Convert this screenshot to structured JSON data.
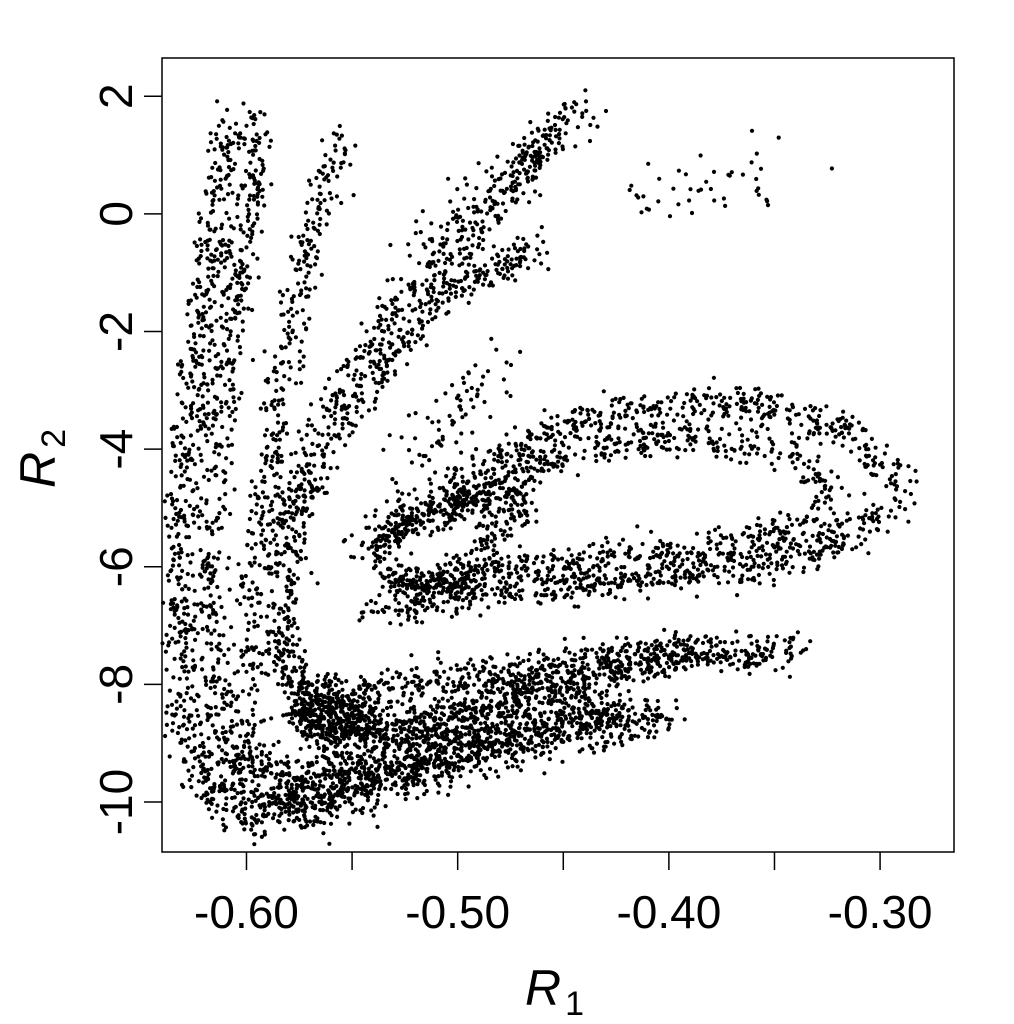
{
  "chart_data": {
    "type": "scatter",
    "title": "",
    "xlabel": {
      "symbol": "R",
      "subscript": "1"
    },
    "ylabel": {
      "symbol": "R",
      "subscript": "2"
    },
    "xlim": [
      -0.64,
      -0.265
    ],
    "ylim": [
      -10.85,
      2.65
    ],
    "x_ticks": [
      -0.6,
      -0.55,
      -0.5,
      -0.45,
      -0.4,
      -0.35,
      -0.3
    ],
    "x_tick_labels": [
      "-0.60",
      "",
      "-0.50",
      "",
      "-0.40",
      "",
      "-0.30"
    ],
    "y_ticks": [
      2,
      0,
      -2,
      -4,
      -6,
      -8,
      -10
    ],
    "y_tick_labels": [
      "2",
      "0",
      "-2",
      "-4",
      "-6",
      "-8",
      "-10"
    ],
    "grid": false,
    "legend": "none",
    "point_color": "#000000",
    "series": [
      {
        "bands": [
          {
            "path": [
              [
                -0.606,
                1.5
              ],
              [
                -0.622,
                -2.0
              ],
              [
                -0.631,
                -5.0
              ],
              [
                -0.631,
                -8.0
              ],
              [
                -0.622,
                -9.6
              ],
              [
                -0.6,
                -10.2
              ],
              [
                -0.57,
                -10.1
              ],
              [
                -0.52,
                -9.4
              ],
              [
                -0.46,
                -8.9
              ],
              [
                -0.4,
                -8.6
              ]
            ],
            "spread": [
              0.005,
              0.22
            ],
            "points": 1300
          },
          {
            "path": [
              [
                -0.593,
                1.7
              ],
              [
                -0.607,
                -2.0
              ],
              [
                -0.616,
                -5.0
              ],
              [
                -0.617,
                -7.5
              ],
              [
                -0.61,
                -9.2
              ],
              [
                -0.59,
                -9.9
              ],
              [
                -0.55,
                -9.7
              ],
              [
                -0.5,
                -9.1
              ],
              [
                -0.45,
                -8.6
              ],
              [
                -0.42,
                -8.3
              ]
            ],
            "spread": [
              0.004,
              0.18
            ],
            "points": 950
          },
          {
            "path": [
              [
                -0.555,
                1.5
              ],
              [
                -0.575,
                -1.2
              ],
              [
                -0.588,
                -4.0
              ],
              [
                -0.598,
                -6.5
              ],
              [
                -0.6,
                -8.0
              ],
              [
                -0.595,
                -9.3
              ],
              [
                -0.575,
                -9.6
              ],
              [
                -0.53,
                -9.0
              ],
              [
                -0.48,
                -8.4
              ],
              [
                -0.44,
                -8.0
              ]
            ],
            "spread": [
              0.004,
              0.18
            ],
            "points": 800
          },
          {
            "path": [
              [
                -0.45,
                1.6
              ],
              [
                -0.49,
                -0.2
              ],
              [
                -0.53,
                -1.6
              ],
              [
                -0.565,
                -3.5
              ],
              [
                -0.585,
                -5.5
              ],
              [
                -0.585,
                -7.5
              ],
              [
                -0.57,
                -8.5
              ],
              [
                -0.54,
                -8.8
              ],
              [
                -0.5,
                -8.4
              ],
              [
                -0.46,
                -8.0
              ],
              [
                -0.4,
                -7.6
              ],
              [
                -0.34,
                -7.4
              ]
            ],
            "spread": [
              0.004,
              0.16
            ],
            "points": 1100
          },
          {
            "path": [
              [
                -0.46,
                -0.6
              ],
              [
                -0.5,
                -1.2
              ],
              [
                -0.545,
                -3.0
              ],
              [
                -0.575,
                -5.0
              ],
              [
                -0.58,
                -6.8
              ],
              [
                -0.578,
                -7.9
              ],
              [
                -0.555,
                -8.3
              ],
              [
                -0.52,
                -8.0
              ],
              [
                -0.48,
                -7.8
              ],
              [
                -0.42,
                -7.5
              ],
              [
                -0.38,
                -7.3
              ]
            ],
            "spread": [
              0.004,
              0.16
            ],
            "points": 800
          },
          {
            "path": [
              [
                -0.54,
                -6.8
              ],
              [
                -0.5,
                -6.5
              ],
              [
                -0.46,
                -6.3
              ],
              [
                -0.41,
                -6.2
              ],
              [
                -0.36,
                -6.0
              ],
              [
                -0.32,
                -5.6
              ],
              [
                -0.293,
                -5.0
              ],
              [
                -0.29,
                -4.5
              ],
              [
                -0.31,
                -3.8
              ],
              [
                -0.35,
                -3.3
              ],
              [
                -0.4,
                -3.3
              ],
              [
                -0.45,
                -3.6
              ],
              [
                -0.49,
                -4.3
              ],
              [
                -0.52,
                -5.0
              ],
              [
                -0.545,
                -5.7
              ]
            ],
            "spread": [
              0.005,
              0.16
            ],
            "points": 1100
          },
          {
            "path": [
              [
                -0.52,
                -6.2
              ],
              [
                -0.48,
                -6.0
              ],
              [
                -0.43,
                -5.9
              ],
              [
                -0.38,
                -5.7
              ],
              [
                -0.335,
                -5.3
              ],
              [
                -0.32,
                -4.8
              ],
              [
                -0.34,
                -4.1
              ],
              [
                -0.39,
                -3.8
              ],
              [
                -0.44,
                -4.0
              ],
              [
                -0.48,
                -4.6
              ],
              [
                -0.51,
                -5.3
              ]
            ],
            "spread": [
              0.004,
              0.14
            ],
            "points": 650
          },
          {
            "path": [
              [
                -0.49,
                -5.6
              ],
              [
                -0.47,
                -5.0
              ],
              [
                -0.47,
                -4.7
              ],
              [
                -0.49,
                -4.8
              ],
              [
                -0.52,
                -5.2
              ],
              [
                -0.54,
                -5.7
              ],
              [
                -0.53,
                -6.3
              ],
              [
                -0.505,
                -6.3
              ],
              [
                -0.485,
                -6.0
              ]
            ],
            "spread": [
              0.004,
              0.13
            ],
            "points": 450
          },
          {
            "path": [
              [
                -0.563,
                -8.6
              ],
              [
                -0.545,
                -8.3
              ],
              [
                -0.545,
                -8.8
              ],
              [
                -0.565,
                -8.9
              ],
              [
                -0.575,
                -8.4
              ],
              [
                -0.56,
                -8.1
              ]
            ],
            "spread": [
              0.005,
              0.16
            ],
            "points": 350
          },
          {
            "path": [
              [
                -0.44,
                1.8
              ],
              [
                -0.48,
                0.5
              ],
              [
                -0.52,
                -0.5
              ]
            ],
            "spread": [
              0.006,
              0.25
            ],
            "points": 120
          },
          {
            "path": [
              [
                -0.42,
                0.3
              ],
              [
                -0.38,
                0.4
              ],
              [
                -0.34,
                1.0
              ]
            ],
            "spread": [
              0.012,
              0.35
            ],
            "points": 45
          },
          {
            "path": [
              [
                -0.48,
                -2.4
              ],
              [
                -0.5,
                -3.2
              ],
              [
                -0.525,
                -4.2
              ]
            ],
            "spread": [
              0.007,
              0.25
            ],
            "points": 70
          }
        ]
      }
    ]
  }
}
